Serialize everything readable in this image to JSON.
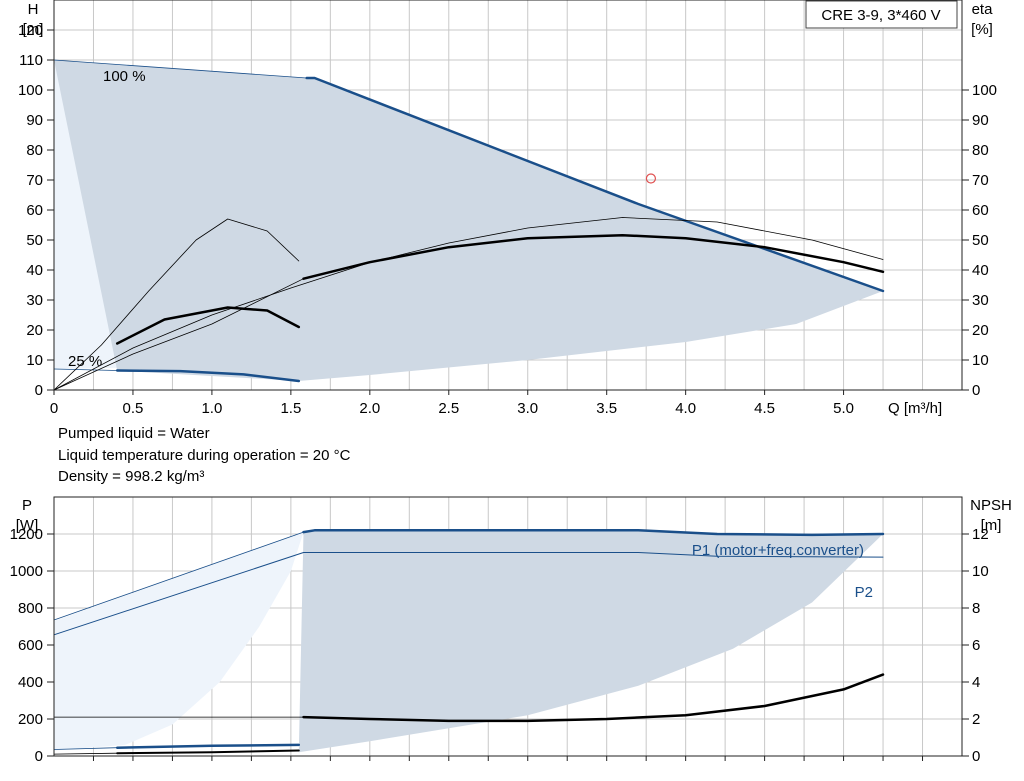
{
  "info": {
    "liquid": "Pumped liquid = Water",
    "temperature": "Liquid temperature during operation = 20 °C",
    "density": "Density = 998.2 kg/m³"
  },
  "colors": {
    "region_fill": "#cfd9e4",
    "pale_fill": "#eef4fb",
    "curve_blue": "#1a4f8a",
    "curve_black": "#000000",
    "grid": "#c8c8c8",
    "marker": "#e05050"
  },
  "chart_data": [
    {
      "type": "line",
      "panel": "head-efficiency",
      "title": "CRE 3-9, 3*460 V",
      "xlabel": "Q [m³/h]",
      "ylabel_left": [
        "H",
        "[m]"
      ],
      "ylabel_right": [
        "eta",
        "[%]"
      ],
      "xlim": [
        0,
        5.75
      ],
      "ylim_left": [
        0,
        130
      ],
      "ylim_right": [
        0,
        130
      ],
      "xticks": [
        "0",
        "0.5",
        "1.0",
        "1.5",
        "2.0",
        "2.5",
        "3.0",
        "3.5",
        "4.0",
        "4.5",
        "5.0"
      ],
      "xtick_values": [
        0,
        0.5,
        1.0,
        1.5,
        2.0,
        2.5,
        3.0,
        3.5,
        4.0,
        4.5,
        5.0
      ],
      "yticks_left": [
        "0",
        "10",
        "20",
        "30",
        "40",
        "50",
        "60",
        "70",
        "80",
        "90",
        "100",
        "110",
        "120"
      ],
      "yticks_right": [
        "0",
        "10",
        "20",
        "30",
        "40",
        "50",
        "60",
        "70",
        "80",
        "90",
        "100"
      ],
      "grid": true,
      "annotations": [
        {
          "text": "100 %",
          "x": 0.32,
          "y": 112
        },
        {
          "text": "25 %",
          "x": 0.1,
          "y": 9
        }
      ],
      "operating_region": {
        "upper": [
          [
            0,
            110
          ],
          [
            1.6,
            104
          ],
          [
            1.65,
            104
          ],
          [
            3.7,
            62
          ],
          [
            5.25,
            33
          ]
        ],
        "lower": [
          [
            0.4,
            6.5
          ],
          [
            1.55,
            3
          ],
          [
            2.0,
            5
          ],
          [
            3.0,
            10
          ],
          [
            4.0,
            16
          ],
          [
            4.7,
            22
          ],
          [
            5.25,
            33
          ]
        ],
        "pale_curve": [
          [
            0,
            110
          ],
          [
            1.62,
            104
          ],
          [
            1.55,
            95
          ],
          [
            1.42,
            70
          ],
          [
            1.25,
            50
          ],
          [
            1.0,
            33
          ],
          [
            0.75,
            18
          ],
          [
            0.5,
            7.5
          ],
          [
            0,
            7
          ]
        ]
      },
      "series": [
        {
          "role": "head",
          "color": "blue",
          "width": 2.5,
          "points": [
            [
              1.6,
              104
            ],
            [
              1.65,
              104
            ],
            [
              3.7,
              62
            ],
            [
              5.25,
              33
            ]
          ]
        },
        {
          "role": "head",
          "color": "blue",
          "width": 0.8,
          "points": [
            [
              0,
              110
            ],
            [
              1.6,
              104
            ]
          ]
        },
        {
          "role": "head",
          "color": "blue",
          "width": 2.5,
          "points": [
            [
              0.4,
              6.5
            ],
            [
              0.8,
              6.3
            ],
            [
              1.2,
              5.2
            ],
            [
              1.55,
              3
            ]
          ]
        },
        {
          "role": "head",
          "color": "blue",
          "width": 0.8,
          "points": [
            [
              0,
              7
            ],
            [
              0.4,
              6.5
            ]
          ]
        },
        {
          "role": "efficiency",
          "color": "black",
          "width": 2.5,
          "points": [
            [
              1.58,
              37.1
            ],
            [
              2.0,
              42.6
            ],
            [
              2.5,
              47.6
            ],
            [
              3.0,
              50.6
            ],
            [
              3.6,
              51.6
            ],
            [
              4.0,
              50.6
            ],
            [
              4.5,
              47.6
            ],
            [
              5.0,
              42.6
            ],
            [
              5.25,
              39.4
            ]
          ]
        },
        {
          "role": "efficiency",
          "color": "black",
          "width": 0.8,
          "points": [
            [
              0,
              0
            ],
            [
              0.5,
              12
            ],
            [
              1.0,
              22
            ],
            [
              1.58,
              37.1
            ]
          ]
        },
        {
          "role": "efficiency",
          "color": "black",
          "width": 0.8,
          "points": [
            [
              0,
              0
            ],
            [
              0.5,
              14
            ],
            [
              1.0,
              25
            ],
            [
              1.5,
              34
            ],
            [
              2.0,
              42.5
            ],
            [
              2.5,
              49
            ],
            [
              3.0,
              54
            ],
            [
              3.6,
              57.5
            ],
            [
              4.2,
              56
            ],
            [
              4.8,
              50
            ],
            [
              5.25,
              43.5
            ]
          ]
        },
        {
          "role": "efficiency",
          "color": "black",
          "width": 2.5,
          "points": [
            [
              0.4,
              15.5
            ],
            [
              0.7,
              23.5
            ],
            [
              1.1,
              27.5
            ],
            [
              1.35,
              26.5
            ],
            [
              1.55,
              21
            ]
          ]
        },
        {
          "role": "efficiency",
          "color": "black",
          "width": 0.8,
          "points": [
            [
              0,
              0
            ],
            [
              0.3,
              15
            ],
            [
              0.6,
              33
            ],
            [
              0.9,
              50
            ],
            [
              1.1,
              57
            ],
            [
              1.35,
              53
            ],
            [
              1.55,
              43
            ]
          ]
        }
      ],
      "marker": {
        "x": 3.78,
        "y": 70.5,
        "shape": "circle"
      }
    },
    {
      "type": "line",
      "panel": "power-npsh",
      "ylabel_left": [
        "P",
        "[W]"
      ],
      "ylabel_right": [
        "NPSH",
        "[m]"
      ],
      "xlim": [
        0,
        5.75
      ],
      "ylim_left": [
        0,
        1400
      ],
      "ylim_right": [
        0,
        14
      ],
      "yticks_left": [
        "0",
        "200",
        "400",
        "600",
        "800",
        "1000",
        "1200"
      ],
      "yticks_right": [
        "0",
        "2",
        "4",
        "6",
        "8",
        "10",
        "12"
      ],
      "grid": true,
      "operating_region": {
        "upper": [
          [
            1.58,
            1210
          ],
          [
            1.65,
            1220
          ],
          [
            3.7,
            1220
          ],
          [
            4.2,
            1200
          ],
          [
            5.25,
            1200
          ]
        ],
        "lower": [
          [
            1.55,
            20
          ],
          [
            2.0,
            80
          ],
          [
            3.0,
            220
          ],
          [
            3.7,
            380
          ],
          [
            4.3,
            580
          ],
          [
            4.8,
            830
          ],
          [
            5.25,
            1200
          ]
        ],
        "pale_curve": [
          [
            0,
            730
          ],
          [
            1.58,
            1210
          ],
          [
            1.5,
            1000
          ],
          [
            1.3,
            700
          ],
          [
            1.05,
            400
          ],
          [
            0.75,
            170
          ],
          [
            0.45,
            60
          ],
          [
            0,
            30
          ]
        ]
      },
      "series": [
        {
          "name": "P1 (motor+freq.converter)",
          "color": "blue",
          "width": 2.5,
          "points": [
            [
              1.58,
              1210
            ],
            [
              1.65,
              1220
            ],
            [
              3.7,
              1220
            ],
            [
              4.2,
              1200
            ],
            [
              4.8,
              1195
            ],
            [
              5.25,
              1200
            ]
          ]
        },
        {
          "name": "P1 (motor+freq.converter)",
          "color": "blue",
          "width": 0.8,
          "points": [
            [
              0,
              735
            ],
            [
              1.58,
              1210
            ]
          ]
        },
        {
          "name": "P2",
          "color": "blue",
          "width": 1.0,
          "points": [
            [
              0,
              655
            ],
            [
              1.58,
              1100
            ],
            [
              1.65,
              1100
            ],
            [
              3.7,
              1100
            ],
            [
              4.2,
              1080
            ],
            [
              5.25,
              1075
            ]
          ]
        },
        {
          "role": "power-reduced",
          "color": "blue",
          "width": 2.5,
          "points": [
            [
              0.4,
              45
            ],
            [
              1.0,
              55
            ],
            [
              1.55,
              60
            ]
          ]
        },
        {
          "role": "power-reduced",
          "color": "blue",
          "width": 0.8,
          "points": [
            [
              0,
              35
            ],
            [
              0.4,
              45
            ]
          ]
        },
        {
          "role": "power-reduced",
          "color": "black",
          "width": 2.0,
          "points": [
            [
              0.4,
              15
            ],
            [
              1.0,
              20
            ],
            [
              1.55,
              30
            ]
          ]
        },
        {
          "role": "power-reduced",
          "color": "black",
          "width": 0.8,
          "points": [
            [
              0,
              10
            ],
            [
              0.4,
              15
            ]
          ]
        },
        {
          "role": "npsh",
          "color": "black",
          "width": 2.5,
          "points": [
            [
              1.58,
              2.1
            ],
            [
              2.0,
              2.0
            ],
            [
              2.5,
              1.9
            ],
            [
              3.0,
              1.9
            ],
            [
              3.5,
              2.0
            ],
            [
              4.0,
              2.2
            ],
            [
              4.5,
              2.7
            ],
            [
              5.0,
              3.6
            ],
            [
              5.25,
              4.4
            ]
          ]
        },
        {
          "role": "npsh",
          "color": "black",
          "width": 0.8,
          "points": [
            [
              0,
              2.1
            ],
            [
              1.58,
              2.1
            ]
          ]
        }
      ]
    }
  ]
}
